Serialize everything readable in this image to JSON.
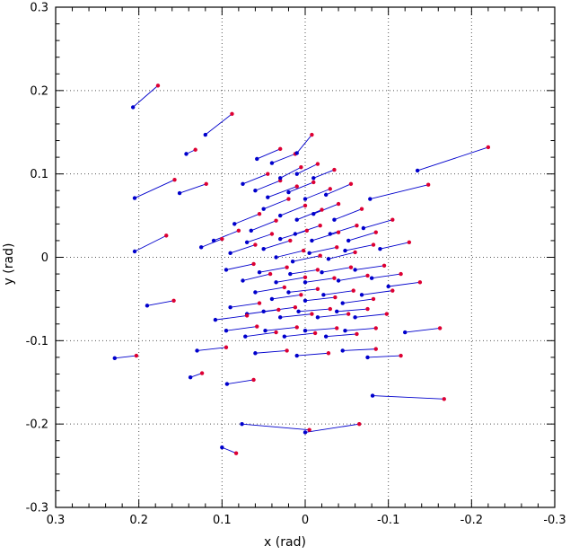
{
  "chart_data": {
    "type": "scatter",
    "subtype": "displacement-vector-field",
    "title": "",
    "xlabel": "x (rad)",
    "ylabel": "y (rad)",
    "xlim": [
      0.3,
      -0.3
    ],
    "ylim": [
      -0.3,
      0.3
    ],
    "x_axis_reversed": true,
    "grid": "dotted",
    "xticks": [
      0.3,
      0.2,
      0.1,
      0,
      -0.1,
      -0.2,
      -0.3
    ],
    "xtick_labels": [
      "0.3",
      "0.2",
      "0.1",
      "0",
      "-0.1",
      "-0.2",
      "-0.3"
    ],
    "yticks": [
      0.3,
      0.2,
      0.1,
      0,
      -0.1,
      -0.2,
      -0.3
    ],
    "ytick_labels": [
      "0.3",
      "0.2",
      "0.1",
      "0",
      "-0.1",
      "-0.2",
      "-0.3"
    ],
    "minor_tick_step": 0.02,
    "style": {
      "line_color": "#0000cc",
      "start_point_color": "#0000cc",
      "end_point_color": "#dd0033",
      "grid_color": "#555555",
      "frame_color": "#000000",
      "point_radius": 2.2
    },
    "legend": [],
    "series": [
      {
        "name": "displacement-vectors",
        "description": "segments [x_start, y_start, x_end, y_end]; start = blue dot, end = red dot",
        "segments": [
          [
            0.207,
            0.18,
            0.177,
            0.206
          ],
          [
            0.12,
            0.147,
            0.088,
            0.172
          ],
          [
            0.143,
            0.124,
            0.132,
            0.129
          ],
          [
            0.058,
            0.118,
            0.03,
            0.13
          ],
          [
            0.04,
            0.113,
            0.012,
            0.124
          ],
          [
            0.01,
            0.125,
            -0.008,
            0.147
          ],
          [
            -0.135,
            0.104,
            -0.22,
            0.132
          ],
          [
            -0.078,
            0.07,
            -0.148,
            0.087
          ],
          [
            0.151,
            0.077,
            0.119,
            0.088
          ],
          [
            0.205,
            0.071,
            0.157,
            0.093
          ],
          [
            0.205,
            0.007,
            0.167,
            0.026
          ],
          [
            0.075,
            0.088,
            0.045,
            0.1
          ],
          [
            0.06,
            0.08,
            0.03,
            0.092
          ],
          [
            0.045,
            0.072,
            0.01,
            0.085
          ],
          [
            0.03,
            0.095,
            0.005,
            0.108
          ],
          [
            0.01,
            0.1,
            -0.015,
            0.112
          ],
          [
            -0.01,
            0.095,
            -0.035,
            0.105
          ],
          [
            0.02,
            0.078,
            -0.01,
            0.09
          ],
          [
            0.0,
            0.07,
            -0.03,
            0.082
          ],
          [
            -0.025,
            0.075,
            -0.055,
            0.088
          ],
          [
            0.05,
            0.058,
            0.02,
            0.07
          ],
          [
            0.03,
            0.05,
            0.0,
            0.062
          ],
          [
            0.01,
            0.045,
            -0.02,
            0.057
          ],
          [
            -0.01,
            0.052,
            -0.04,
            0.064
          ],
          [
            -0.035,
            0.045,
            -0.068,
            0.058
          ],
          [
            0.085,
            0.04,
            0.055,
            0.052
          ],
          [
            0.065,
            0.032,
            0.035,
            0.044
          ],
          [
            0.11,
            0.02,
            0.08,
            0.032
          ],
          [
            0.125,
            0.012,
            0.1,
            0.022
          ],
          [
            0.09,
            0.005,
            0.06,
            0.015
          ],
          [
            0.07,
            0.018,
            0.04,
            0.028
          ],
          [
            0.05,
            0.01,
            0.018,
            0.02
          ],
          [
            0.03,
            0.022,
            -0.002,
            0.032
          ],
          [
            0.012,
            0.028,
            -0.018,
            0.038
          ],
          [
            -0.008,
            0.02,
            -0.04,
            0.03
          ],
          [
            -0.03,
            0.028,
            -0.062,
            0.038
          ],
          [
            -0.052,
            0.02,
            -0.085,
            0.03
          ],
          [
            -0.07,
            0.035,
            -0.105,
            0.045
          ],
          [
            -0.09,
            0.01,
            -0.125,
            0.018
          ],
          [
            0.035,
            0.0,
            0.002,
            0.008
          ],
          [
            0.015,
            -0.005,
            -0.018,
            0.002
          ],
          [
            -0.005,
            0.005,
            -0.038,
            0.012
          ],
          [
            -0.028,
            -0.002,
            -0.06,
            0.006
          ],
          [
            -0.048,
            0.008,
            -0.082,
            0.015
          ],
          [
            0.095,
            -0.015,
            0.062,
            -0.008
          ],
          [
            0.075,
            -0.028,
            0.042,
            -0.02
          ],
          [
            0.055,
            -0.018,
            0.022,
            -0.012
          ],
          [
            0.035,
            -0.03,
            0.0,
            -0.024
          ],
          [
            0.018,
            -0.02,
            -0.015,
            -0.015
          ],
          [
            0.0,
            -0.03,
            -0.035,
            -0.025
          ],
          [
            -0.02,
            -0.018,
            -0.055,
            -0.012
          ],
          [
            -0.04,
            -0.028,
            -0.075,
            -0.022
          ],
          [
            -0.06,
            -0.015,
            -0.095,
            -0.01
          ],
          [
            -0.08,
            -0.025,
            -0.115,
            -0.02
          ],
          [
            -0.1,
            -0.035,
            -0.138,
            -0.03
          ],
          [
            0.06,
            -0.042,
            0.025,
            -0.036
          ],
          [
            0.04,
            -0.05,
            0.005,
            -0.045
          ],
          [
            0.02,
            -0.042,
            -0.015,
            -0.038
          ],
          [
            0.0,
            -0.052,
            -0.036,
            -0.048
          ],
          [
            -0.022,
            -0.045,
            -0.058,
            -0.04
          ],
          [
            -0.045,
            -0.055,
            -0.082,
            -0.05
          ],
          [
            -0.068,
            -0.045,
            -0.105,
            -0.04
          ],
          [
            0.09,
            -0.06,
            0.055,
            -0.055
          ],
          [
            0.07,
            -0.068,
            0.032,
            -0.063
          ],
          [
            0.108,
            -0.075,
            0.07,
            -0.07
          ],
          [
            0.19,
            -0.058,
            0.158,
            -0.052
          ],
          [
            0.05,
            -0.065,
            0.012,
            -0.06
          ],
          [
            0.03,
            -0.072,
            -0.008,
            -0.068
          ],
          [
            0.008,
            -0.065,
            -0.03,
            -0.062
          ],
          [
            -0.015,
            -0.072,
            -0.052,
            -0.068
          ],
          [
            -0.038,
            -0.065,
            -0.075,
            -0.062
          ],
          [
            -0.06,
            -0.072,
            -0.098,
            -0.068
          ],
          [
            0.095,
            -0.088,
            0.058,
            -0.083
          ],
          [
            0.072,
            -0.095,
            0.035,
            -0.09
          ],
          [
            0.048,
            -0.088,
            0.01,
            -0.084
          ],
          [
            0.025,
            -0.095,
            -0.012,
            -0.091
          ],
          [
            0.0,
            -0.088,
            -0.038,
            -0.085
          ],
          [
            -0.025,
            -0.095,
            -0.062,
            -0.092
          ],
          [
            -0.048,
            -0.088,
            -0.085,
            -0.085
          ],
          [
            -0.12,
            -0.09,
            -0.162,
            -0.085
          ],
          [
            0.13,
            -0.112,
            0.095,
            -0.108
          ],
          [
            0.06,
            -0.115,
            0.022,
            -0.112
          ],
          [
            0.01,
            -0.118,
            -0.028,
            -0.115
          ],
          [
            -0.045,
            -0.112,
            -0.085,
            -0.11
          ],
          [
            -0.075,
            -0.12,
            -0.115,
            -0.118
          ],
          [
            0.229,
            -0.121,
            0.203,
            -0.118
          ],
          [
            0.138,
            -0.144,
            0.124,
            -0.139
          ],
          [
            0.094,
            -0.152,
            0.062,
            -0.147
          ],
          [
            0.076,
            -0.2,
            -0.005,
            -0.207
          ],
          [
            0.0,
            -0.21,
            -0.065,
            -0.2
          ],
          [
            -0.081,
            -0.166,
            -0.167,
            -0.17
          ],
          [
            0.1,
            -0.228,
            0.083,
            -0.235
          ]
        ]
      }
    ]
  }
}
